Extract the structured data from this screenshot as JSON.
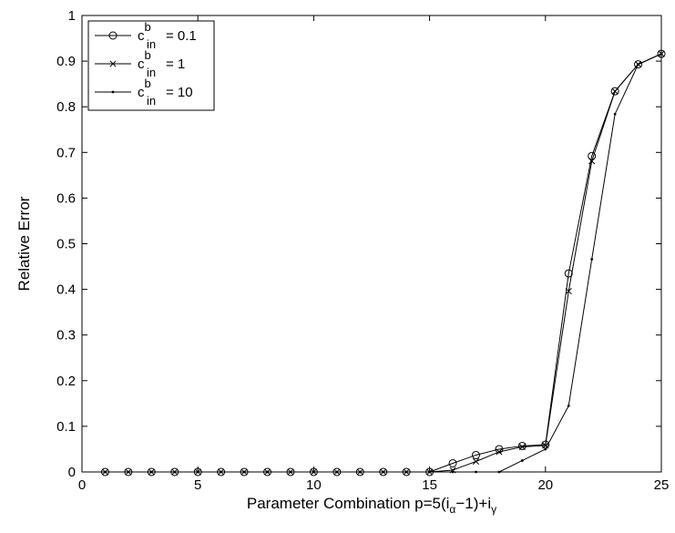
{
  "chart_data": {
    "type": "line",
    "xlabel": {
      "prefix": "Parameter Combination p=5(i",
      "sub1": "α",
      "mid": "−1)+i",
      "sub2": "γ"
    },
    "ylabel": "Relative Error",
    "xlim": [
      0,
      25
    ],
    "ylim": [
      0,
      1
    ],
    "xticks": [
      "0",
      "5",
      "10",
      "15",
      "20",
      "25"
    ],
    "yticks": [
      "0",
      "0.1",
      "0.2",
      "0.3",
      "0.4",
      "0.5",
      "0.6",
      "0.7",
      "0.8",
      "0.9",
      "1"
    ],
    "grid": false,
    "legend_position": "top-left",
    "x": [
      1,
      2,
      3,
      4,
      5,
      6,
      7,
      8,
      9,
      10,
      11,
      12,
      13,
      14,
      15,
      16,
      17,
      18,
      19,
      20,
      21,
      22,
      23,
      24,
      25
    ],
    "series": [
      {
        "legend": {
          "base": "c",
          "sup": "b",
          "sub": "in",
          "value": "= 0.1"
        },
        "marker": "circle",
        "values": [
          0,
          0,
          0,
          0,
          0,
          0,
          0,
          0,
          0,
          0,
          0,
          0,
          0,
          0,
          0,
          0.019,
          0.037,
          0.05,
          0.057,
          0.06,
          0.435,
          0.692,
          0.834,
          0.893,
          0.916
        ]
      },
      {
        "legend": {
          "base": "c",
          "sup": "b",
          "sub": "in",
          "value": "= 1"
        },
        "marker": "cross",
        "values": [
          0,
          0,
          0,
          0,
          0,
          0,
          0,
          0,
          0,
          0,
          0,
          0,
          0,
          0,
          0,
          0.004,
          0.023,
          0.044,
          0.055,
          0.058,
          0.396,
          0.681,
          0.834,
          0.893,
          0.916
        ]
      },
      {
        "legend": {
          "base": "c",
          "sup": "b",
          "sub": "in",
          "value": "= 10"
        },
        "marker": "dot",
        "values": [
          0,
          0,
          0,
          0,
          0,
          0,
          0,
          0,
          0,
          0,
          0,
          0,
          0,
          0,
          0,
          0,
          0,
          0,
          0.025,
          0.05,
          0.145,
          0.466,
          0.784,
          0.893,
          0.916
        ]
      }
    ]
  }
}
